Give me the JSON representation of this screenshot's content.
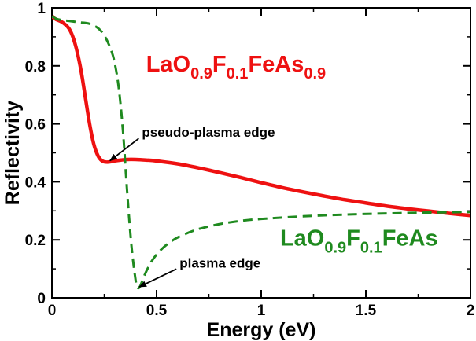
{
  "chart_data": {
    "type": "line",
    "title": "",
    "xlabel": "Energy (eV)",
    "ylabel": "Reflectivity",
    "xlim": [
      0,
      2
    ],
    "ylim": [
      0,
      1
    ],
    "grid": false,
    "x_ticks": [
      0,
      0.5,
      1,
      1.5,
      2
    ],
    "x_tick_labels": [
      "0",
      "0.5",
      "1",
      "1.5",
      "2"
    ],
    "y_ticks": [
      0,
      0.2,
      0.4,
      0.6,
      0.8,
      1
    ],
    "y_tick_labels": [
      "0",
      "0.2",
      "0.4",
      "0.6",
      "0.8",
      "1"
    ],
    "series": [
      {
        "name": "LaO0.9F0.1FeAs0.9",
        "label_parts": [
          {
            "text": "LaO",
            "sub": false
          },
          {
            "text": "0.9",
            "sub": true
          },
          {
            "text": "F",
            "sub": false
          },
          {
            "text": "0.1",
            "sub": true
          },
          {
            "text": "FeAs",
            "sub": false
          },
          {
            "text": "0.9",
            "sub": true
          }
        ],
        "color": "#ee1111",
        "style": "solid",
        "x": [
          0,
          0.02,
          0.05,
          0.08,
          0.1,
          0.12,
          0.14,
          0.16,
          0.18,
          0.2,
          0.22,
          0.24,
          0.26,
          0.28,
          0.3,
          0.33,
          0.36,
          0.4,
          0.45,
          0.5,
          0.6,
          0.7,
          0.8,
          0.9,
          1.0,
          1.1,
          1.2,
          1.3,
          1.4,
          1.5,
          1.6,
          1.7,
          1.8,
          1.9,
          2.0
        ],
        "y": [
          0.97,
          0.96,
          0.95,
          0.93,
          0.9,
          0.85,
          0.78,
          0.69,
          0.6,
          0.53,
          0.49,
          0.472,
          0.468,
          0.469,
          0.472,
          0.475,
          0.477,
          0.477,
          0.475,
          0.472,
          0.462,
          0.448,
          0.432,
          0.415,
          0.397,
          0.38,
          0.365,
          0.351,
          0.338,
          0.327,
          0.316,
          0.307,
          0.299,
          0.291,
          0.284
        ]
      },
      {
        "name": "LaO0.9F0.1FeAs",
        "label_parts": [
          {
            "text": "LaO",
            "sub": false
          },
          {
            "text": "0.9",
            "sub": true
          },
          {
            "text": "F",
            "sub": false
          },
          {
            "text": "0.1",
            "sub": true
          },
          {
            "text": "FeAs",
            "sub": false
          }
        ],
        "color": "#1f8a1f",
        "style": "dashed",
        "x": [
          0,
          0.03,
          0.08,
          0.13,
          0.18,
          0.22,
          0.25,
          0.28,
          0.3,
          0.32,
          0.34,
          0.36,
          0.38,
          0.4,
          0.41,
          0.42,
          0.43,
          0.45,
          0.48,
          0.52,
          0.57,
          0.62,
          0.7,
          0.8,
          0.9,
          1.0,
          1.2,
          1.4,
          1.6,
          1.8,
          2.0
        ],
        "y": [
          0.97,
          0.96,
          0.955,
          0.95,
          0.945,
          0.93,
          0.905,
          0.86,
          0.81,
          0.72,
          0.57,
          0.36,
          0.18,
          0.06,
          0.035,
          0.038,
          0.055,
          0.09,
          0.13,
          0.165,
          0.195,
          0.215,
          0.237,
          0.254,
          0.265,
          0.272,
          0.281,
          0.287,
          0.291,
          0.294,
          0.296
        ]
      }
    ],
    "annotations": [
      {
        "text": "pseudo-plasma edge",
        "x": 0.43,
        "y": 0.555,
        "arrow_to": [
          0.27,
          0.47
        ]
      },
      {
        "text": "plasma edge",
        "x": 0.61,
        "y": 0.105,
        "arrow_to": [
          0.41,
          0.035
        ]
      }
    ],
    "series_label_positions": [
      {
        "series": 0,
        "x": 0.45,
        "y": 0.78
      },
      {
        "series": 1,
        "x": 1.09,
        "y": 0.18
      }
    ]
  }
}
